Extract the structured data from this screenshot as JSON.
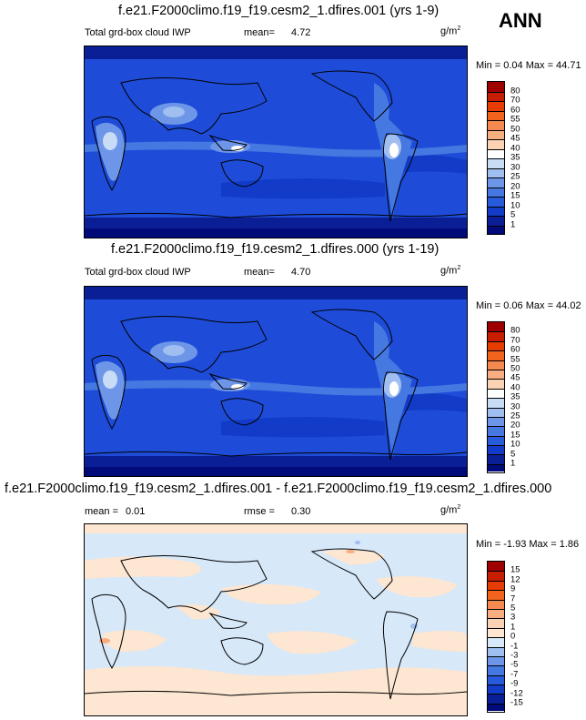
{
  "season": "ANN",
  "panels": [
    {
      "title": "f.e21.F2000climo.f19_f19.cesm2_1.dfires.001 (yrs 1-9)",
      "left_label": "Total grd-box cloud IWP",
      "stat_label": "mean=",
      "stat_value": "4.72",
      "units_base": "g/m",
      "units_exp": "2",
      "minmax": "Min =  0.04 Max =  44.71",
      "colorbar": {
        "levels": [
          "80",
          "70",
          "60",
          "55",
          "50",
          "45",
          "40",
          "35",
          "30",
          "25",
          "20",
          "15",
          "10",
          "5",
          "1"
        ],
        "colors": [
          "#9e0000",
          "#c81e00",
          "#e63c00",
          "#f2641e",
          "#f58a50",
          "#f8ae80",
          "#fbd2b4",
          "#ffffff",
          "#c8dcf6",
          "#a0bef0",
          "#6e96e8",
          "#4678e2",
          "#285adc",
          "#123cc8",
          "#0a1e96",
          "#000a78"
        ]
      }
    },
    {
      "title": "f.e21.F2000climo.f19_f19.cesm2_1.dfires.000 (yrs 1-19)",
      "left_label": "Total grd-box cloud IWP",
      "stat_label": "mean=",
      "stat_value": "4.70",
      "units_base": "g/m",
      "units_exp": "2",
      "minmax": "Min =  0.06 Max =  44.02",
      "colorbar": {
        "levels": [
          "80",
          "70",
          "60",
          "55",
          "50",
          "45",
          "40",
          "35",
          "30",
          "25",
          "20",
          "15",
          "10",
          "5",
          "1"
        ],
        "colors": [
          "#9e0000",
          "#c81e00",
          "#e63c00",
          "#f2641e",
          "#f58a50",
          "#f8ae80",
          "#fbd2b4",
          "#ffffff",
          "#c8dcf6",
          "#a0bef0",
          "#6e96e8",
          "#4678e2",
          "#285adc",
          "#123cc8",
          "#0a1e96",
          "#000a78"
        ]
      }
    },
    {
      "title": "f.e21.F2000climo.f19_f19.cesm2_1.dfires.001 - f.e21.F2000climo.f19_f19.cesm2_1.dfires.000",
      "left_label": "mean =",
      "left_value": "0.01",
      "stat_label": "rmse =",
      "stat_value": "0.30",
      "units_base": "g/m",
      "units_exp": "2",
      "minmax": "Min =  -1.93 Max =  1.86",
      "colorbar": {
        "levels": [
          "15",
          "12",
          "9",
          "7",
          "5",
          "3",
          "1",
          "0",
          "-1",
          "-3",
          "-5",
          "-7",
          "-9",
          "-12",
          "-15"
        ],
        "colors": [
          "#9e0000",
          "#c81e00",
          "#e63c00",
          "#f2641e",
          "#f58a50",
          "#f8ae80",
          "#fbd2b4",
          "#fde6d2",
          "#d7e8f8",
          "#a0bef0",
          "#6e96e8",
          "#4678e2",
          "#285adc",
          "#123cc8",
          "#0a1e96",
          "#000a78"
        ]
      }
    }
  ]
}
